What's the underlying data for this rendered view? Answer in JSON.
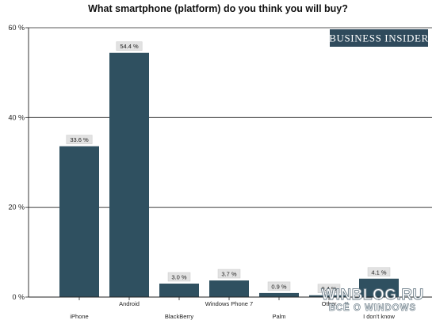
{
  "chart_data": {
    "type": "bar",
    "title": "What smartphone (platform) do you think you will buy?",
    "categories": [
      "iPhone",
      "Android",
      "BlackBerry",
      "Windows Phone 7",
      "Palm",
      "Other",
      "I don't know"
    ],
    "values": [
      33.6,
      54.4,
      3.0,
      3.7,
      0.9,
      0.4,
      4.1
    ],
    "value_labels": [
      "33.6 %",
      "54.4 %",
      "3.0 %",
      "3.7 %",
      "0.9 %",
      "0.4 %",
      "4.1 %"
    ],
    "ylim": [
      0,
      60
    ],
    "yticks": [
      0,
      20,
      40,
      60
    ],
    "ytick_labels": [
      "0 %",
      "20 %",
      "40 %",
      "60 %"
    ],
    "xlabel": "",
    "ylabel": "",
    "grid": true,
    "bar_color": "#2f5060"
  },
  "branding": {
    "logo_text": "BUSINESS INSIDER",
    "logo_color": "#2f4a5c"
  },
  "watermark": {
    "main": "WINBLOG.RU",
    "sub": "ВСЁ О WINDOWS"
  }
}
